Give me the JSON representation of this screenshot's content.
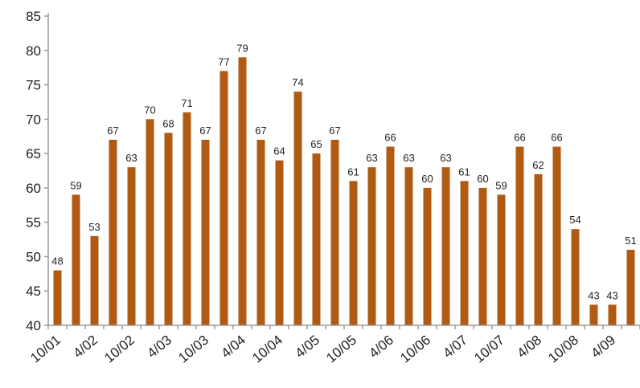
{
  "chart_data": {
    "type": "bar",
    "title": "",
    "xlabel": "",
    "ylabel": "",
    "ylim": [
      40,
      85
    ],
    "yticks": [
      40,
      45,
      50,
      55,
      60,
      65,
      70,
      75,
      80,
      85
    ],
    "grid": false,
    "legend": "none",
    "bar_color": "#b05a14",
    "axis_color": "#9a9a9a",
    "tick_labels": [
      "10/01",
      "4/02",
      "10/02",
      "4/03",
      "10/03",
      "4/04",
      "10/04",
      "4/05",
      "10/05",
      "4/06",
      "10/06",
      "4/07",
      "10/07",
      "4/08",
      "10/08",
      "4/09"
    ],
    "values": [
      48,
      59,
      53,
      67,
      63,
      70,
      68,
      71,
      67,
      77,
      79,
      67,
      64,
      74,
      65,
      67,
      61,
      63,
      66,
      63,
      60,
      63,
      61,
      60,
      59,
      66,
      62,
      66,
      54,
      43,
      43,
      51
    ]
  }
}
